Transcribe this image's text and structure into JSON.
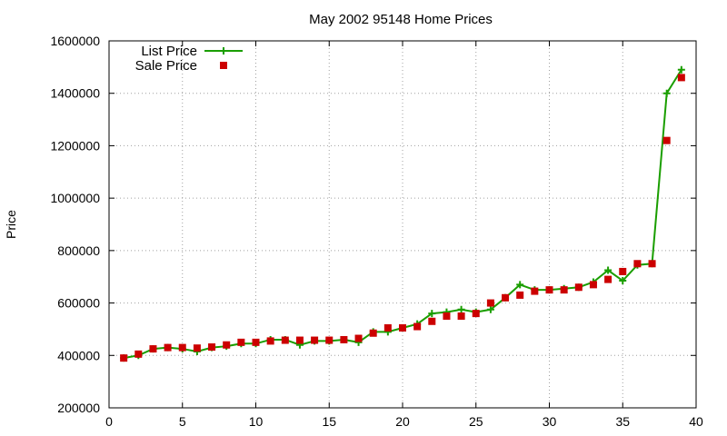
{
  "chart_data": {
    "type": "line",
    "title": "May 2002 95148 Home Prices",
    "xlabel": "",
    "ylabel": "Price",
    "xlim": [
      0,
      40
    ],
    "ylim": [
      200000,
      1600000
    ],
    "x_ticks": [
      0,
      5,
      10,
      15,
      20,
      25,
      30,
      35,
      40
    ],
    "y_ticks": [
      200000,
      400000,
      600000,
      800000,
      1000000,
      1200000,
      1400000,
      1600000
    ],
    "grid": true,
    "legend_position": "top-left",
    "series": [
      {
        "name": "List Price",
        "style": "line-plus",
        "color": "#1a9e00",
        "x": [
          1,
          2,
          3,
          4,
          5,
          6,
          7,
          8,
          9,
          10,
          11,
          12,
          13,
          14,
          15,
          16,
          17,
          18,
          19,
          20,
          21,
          22,
          23,
          24,
          25,
          26,
          27,
          28,
          29,
          30,
          31,
          32,
          33,
          34,
          35,
          36,
          37,
          38,
          39
        ],
        "values": [
          390000,
          400000,
          425000,
          430000,
          425000,
          415000,
          430000,
          435000,
          445000,
          445000,
          460000,
          460000,
          440000,
          455000,
          455000,
          460000,
          450000,
          490000,
          490000,
          505000,
          520000,
          560000,
          565000,
          575000,
          565000,
          575000,
          620000,
          670000,
          650000,
          650000,
          655000,
          660000,
          680000,
          725000,
          685000,
          745000,
          750000,
          1400000,
          1490000
        ]
      },
      {
        "name": "Sale Price",
        "style": "square",
        "color": "#cc0000",
        "x": [
          1,
          2,
          3,
          4,
          5,
          6,
          7,
          8,
          9,
          10,
          11,
          12,
          13,
          14,
          15,
          16,
          17,
          18,
          19,
          20,
          21,
          22,
          23,
          24,
          25,
          26,
          27,
          28,
          29,
          30,
          31,
          32,
          33,
          34,
          35,
          36,
          37,
          38,
          39
        ],
        "values": [
          390000,
          405000,
          425000,
          430000,
          430000,
          428000,
          432000,
          440000,
          450000,
          450000,
          455000,
          458000,
          458000,
          458000,
          458000,
          460000,
          465000,
          485000,
          505000,
          505000,
          510000,
          530000,
          550000,
          550000,
          560000,
          600000,
          620000,
          630000,
          645000,
          650000,
          650000,
          660000,
          670000,
          690000,
          720000,
          750000,
          750000,
          1220000,
          1460000
        ]
      }
    ]
  }
}
